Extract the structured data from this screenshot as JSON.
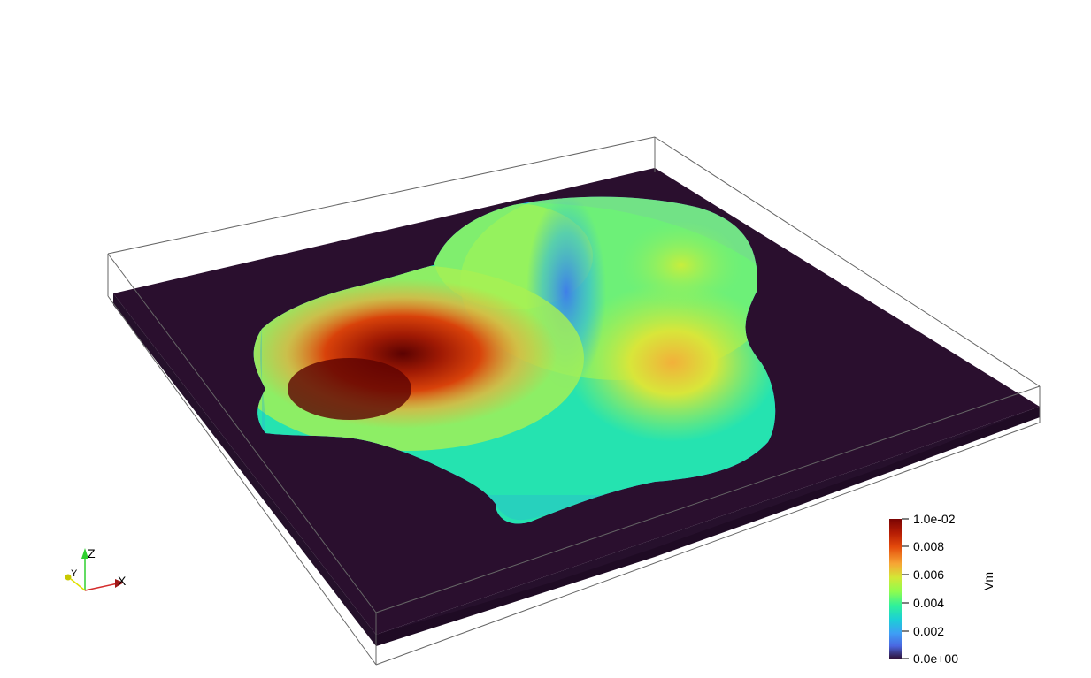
{
  "scene": {
    "background": "#ffffff",
    "slab_color": "#2a0f2e",
    "outline_color": "#666666"
  },
  "colorbar": {
    "title": "Vm",
    "tick_labels": [
      "1.0e-02",
      "0.008",
      "0.006",
      "0.004",
      "0.002",
      "0.0e+00"
    ],
    "colormap": [
      "#7a0403",
      "#c42503",
      "#f26a0e",
      "#f7b23a",
      "#c7ef34",
      "#7bfc55",
      "#22eba1",
      "#1bcfd4",
      "#3ea4f6",
      "#4675ed",
      "#4640a8",
      "#30123b"
    ]
  },
  "orientation_axes": {
    "x": {
      "label": "X",
      "color": "#d42a2a"
    },
    "y": {
      "label": "Y",
      "color": "#e0e000"
    },
    "z": {
      "label": "Z",
      "color": "#2fcf2f"
    }
  }
}
